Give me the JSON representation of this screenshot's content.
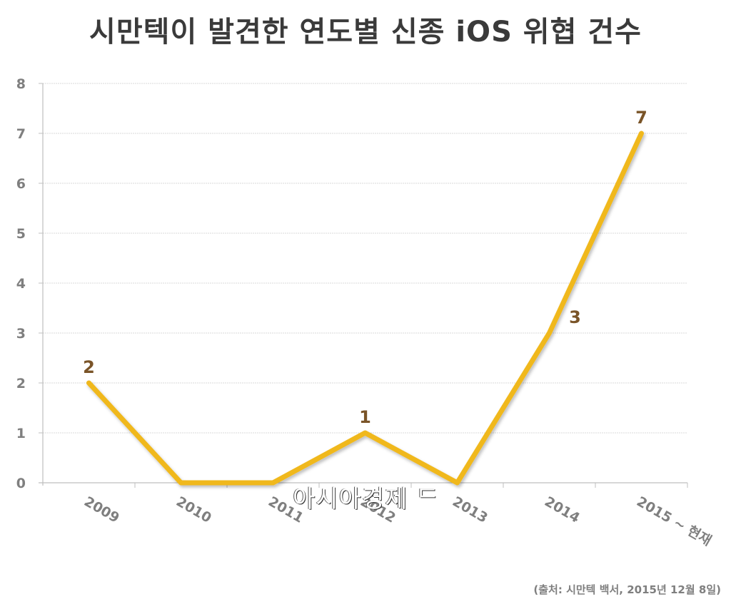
{
  "chart_data": {
    "type": "line",
    "title": "시만텍이 발견한 연도별 신종 iOS 위협 건수",
    "categories": [
      "2009",
      "2010",
      "2011",
      "2012",
      "2013",
      "2014",
      "2015 ~ 현재"
    ],
    "series": [
      {
        "name": "신종 iOS 위협 건수",
        "values": [
          2,
          0,
          0,
          1,
          0,
          3,
          7
        ],
        "color": "#F0B81C"
      }
    ],
    "data_labels": [
      {
        "category": "2009",
        "text": "2"
      },
      {
        "category": "2012",
        "text": "1"
      },
      {
        "category": "2014",
        "text": "3"
      },
      {
        "category": "2015 ~ 현재",
        "text": "7"
      }
    ],
    "xlabel": "",
    "ylabel": "",
    "ylim": [
      0,
      8
    ],
    "yticks": [
      "0",
      "1",
      "2",
      "3",
      "4",
      "5",
      "6",
      "7",
      "8"
    ],
    "grid": true,
    "legend": "none",
    "label_color": "#7A5428",
    "axis_text_color": "#7F7F7F"
  },
  "title": "시만텍이 발견한 연도별 신종 iOS 위협 건수",
  "source": "(출처: 시만텍 백서, 2015년 12월 8일)",
  "watermark": "아시아경제 ᄃ"
}
